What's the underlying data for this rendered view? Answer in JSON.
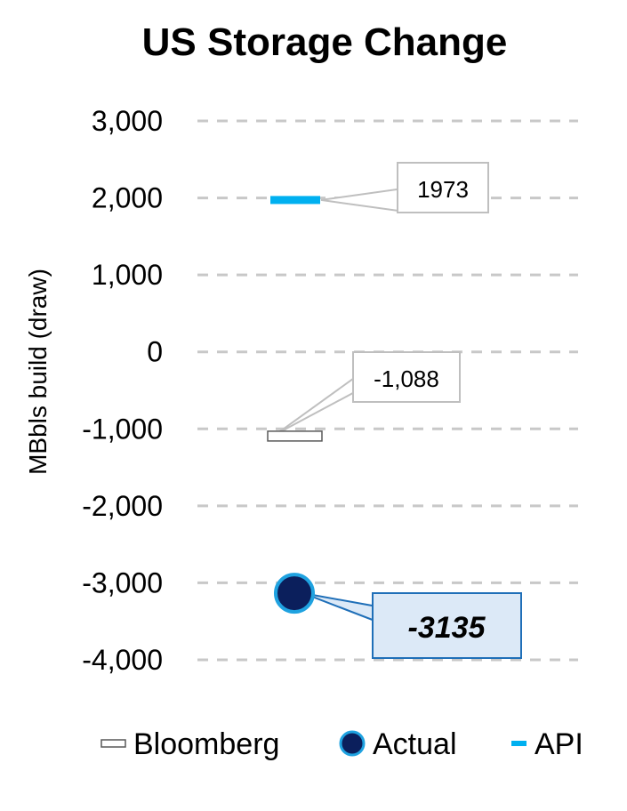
{
  "chart_data": {
    "type": "scatter",
    "title": "US Storage Change",
    "xlabel": "",
    "ylabel": "MBbls build (draw)",
    "ylim": [
      -4000,
      3000
    ],
    "yticks": [
      3000,
      2000,
      1000,
      0,
      -1000,
      -2000,
      -3000,
      -4000
    ],
    "ytick_labels": [
      "3,000",
      "2,000",
      "1,000",
      "0",
      "-1,000",
      "-2,000",
      "-3,000",
      "-4,000"
    ],
    "grid": true,
    "legend_position": "bottom",
    "series": [
      {
        "name": "Bloomberg",
        "value": -1088,
        "label": "-1,088",
        "marker": "outlined-dash",
        "color": "#ffffff",
        "stroke": "#595959"
      },
      {
        "name": "Actual",
        "value": -3135,
        "label": "-3135",
        "marker": "circle",
        "color": "#0b1f5c",
        "stroke": "#1fa2e0"
      },
      {
        "name": "API",
        "value": 1973,
        "label": "1973",
        "marker": "dash",
        "color": "#00b0f0"
      }
    ]
  }
}
